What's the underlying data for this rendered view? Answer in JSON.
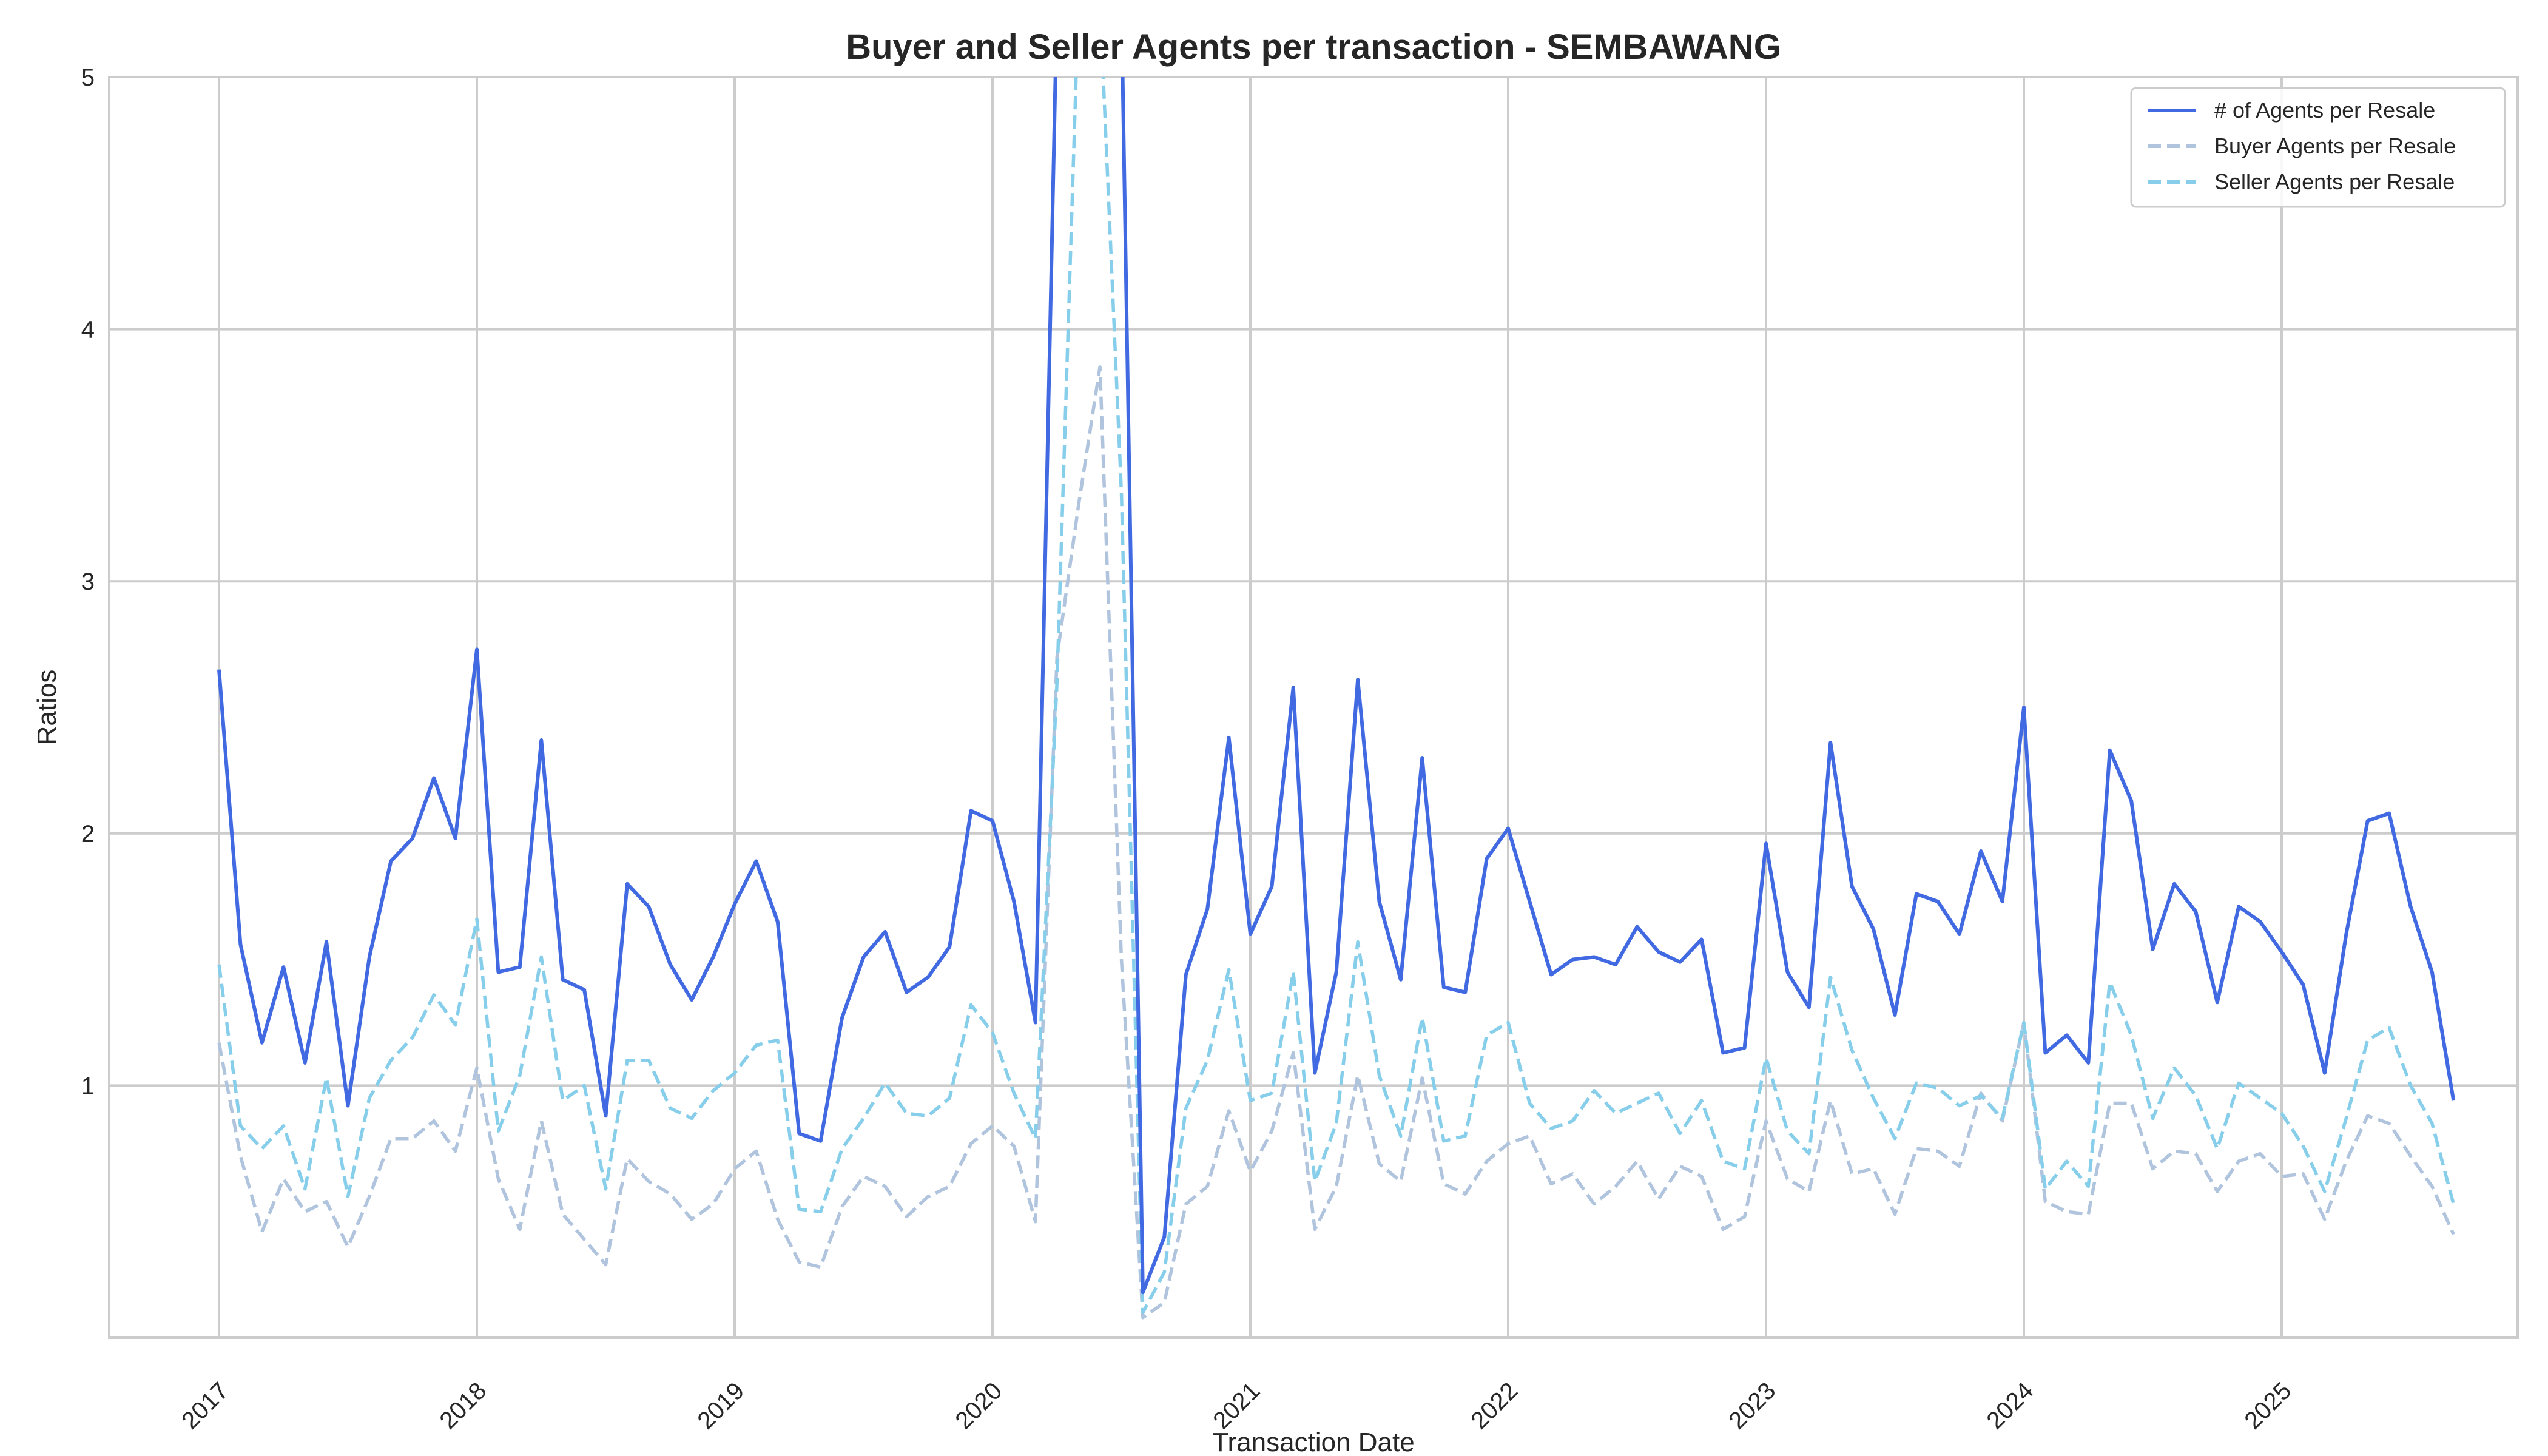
{
  "chart_data": {
    "type": "line",
    "title": "Buyer and Seller Agents per transaction - SEMBAWANG",
    "xlabel": "Transaction Date",
    "ylabel": "Ratios",
    "x_start": "2017-01",
    "x_ticks": [
      "2017",
      "2018",
      "2019",
      "2020",
      "2021",
      "2022",
      "2023",
      "2024",
      "2025"
    ],
    "y_ticks": [
      "1",
      "2",
      "3",
      "4",
      "5"
    ],
    "ylim": [
      0,
      5
    ],
    "grid": true,
    "legend_position": "top-right",
    "series": [
      {
        "name": "# of Agents per Resale",
        "color": "#4169e1",
        "style": "solid",
        "values": [
          2.65,
          1.56,
          1.17,
          1.47,
          1.09,
          1.57,
          0.92,
          1.51,
          1.89,
          1.98,
          2.22,
          1.98,
          2.73,
          1.45,
          1.47,
          2.37,
          1.42,
          1.38,
          0.88,
          1.8,
          1.71,
          1.48,
          1.34,
          1.51,
          1.72,
          1.89,
          1.65,
          0.81,
          0.78,
          1.27,
          1.51,
          1.61,
          1.37,
          1.43,
          1.55,
          2.09,
          2.05,
          1.73,
          1.25,
          5.3,
          5.2,
          5.2,
          5.3,
          0.18,
          0.4,
          1.44,
          1.7,
          2.38,
          1.6,
          1.79,
          2.58,
          1.05,
          1.45,
          2.61,
          1.73,
          1.42,
          2.3,
          1.39,
          1.37,
          1.9,
          2.02,
          1.73,
          1.44,
          1.5,
          1.51,
          1.48,
          1.63,
          1.53,
          1.49,
          1.58,
          1.13,
          1.15,
          1.96,
          1.45,
          1.31,
          2.36,
          1.79,
          1.62,
          1.28,
          1.76,
          1.73,
          1.6,
          1.93,
          1.73,
          2.5,
          1.13,
          1.2,
          1.09,
          2.33,
          2.13,
          1.54,
          1.8,
          1.69,
          1.33,
          1.71,
          1.65,
          1.53,
          1.4,
          1.05,
          1.6,
          2.05,
          2.08,
          1.71,
          1.45,
          0.94
        ]
      },
      {
        "name": "Buyer Agents per Resale",
        "color": "#b0c4de",
        "style": "dashed",
        "values": [
          1.17,
          0.72,
          0.42,
          0.63,
          0.5,
          0.54,
          0.36,
          0.56,
          0.79,
          0.79,
          0.86,
          0.74,
          1.07,
          0.63,
          0.43,
          0.86,
          0.49,
          0.39,
          0.29,
          0.71,
          0.62,
          0.57,
          0.47,
          0.53,
          0.67,
          0.74,
          0.47,
          0.3,
          0.28,
          0.52,
          0.64,
          0.6,
          0.48,
          0.56,
          0.6,
          0.77,
          0.84,
          0.76,
          0.46,
          2.7,
          3.3,
          3.85,
          1.5,
          0.08,
          0.14,
          0.53,
          0.6,
          0.9,
          0.66,
          0.82,
          1.13,
          0.43,
          0.6,
          1.04,
          0.69,
          0.62,
          1.03,
          0.61,
          0.57,
          0.7,
          0.77,
          0.8,
          0.61,
          0.65,
          0.53,
          0.6,
          0.7,
          0.55,
          0.68,
          0.64,
          0.43,
          0.48,
          0.86,
          0.63,
          0.58,
          0.94,
          0.65,
          0.67,
          0.49,
          0.75,
          0.74,
          0.68,
          0.97,
          0.86,
          1.25,
          0.54,
          0.5,
          0.49,
          0.93,
          0.93,
          0.67,
          0.74,
          0.73,
          0.58,
          0.7,
          0.73,
          0.64,
          0.65,
          0.47,
          0.7,
          0.88,
          0.85,
          0.72,
          0.6,
          0.41
        ]
      },
      {
        "name": "Seller Agents per Resale",
        "color": "#87ceeb",
        "style": "dashed",
        "values": [
          1.48,
          0.84,
          0.75,
          0.84,
          0.59,
          1.03,
          0.56,
          0.95,
          1.1,
          1.19,
          1.36,
          1.24,
          1.66,
          0.82,
          1.04,
          1.51,
          0.94,
          1.0,
          0.59,
          1.1,
          1.1,
          0.91,
          0.87,
          0.98,
          1.05,
          1.16,
          1.18,
          0.51,
          0.5,
          0.75,
          0.87,
          1.01,
          0.89,
          0.88,
          0.95,
          1.32,
          1.21,
          0.97,
          0.79,
          2.6,
          5.3,
          5.3,
          3.35,
          0.1,
          0.26,
          0.91,
          1.1,
          1.46,
          0.94,
          0.97,
          1.45,
          0.62,
          0.85,
          1.57,
          1.04,
          0.8,
          1.27,
          0.78,
          0.8,
          1.2,
          1.25,
          0.93,
          0.83,
          0.86,
          0.98,
          0.89,
          0.93,
          0.97,
          0.81,
          0.94,
          0.7,
          0.67,
          1.11,
          0.82,
          0.73,
          1.43,
          1.14,
          0.95,
          0.79,
          1.01,
          0.99,
          0.92,
          0.96,
          0.87,
          1.25,
          0.59,
          0.7,
          0.6,
          1.41,
          1.2,
          0.87,
          1.07,
          0.96,
          0.75,
          1.01,
          0.95,
          0.89,
          0.76,
          0.58,
          0.87,
          1.18,
          1.23,
          1.0,
          0.85,
          0.53
        ]
      }
    ]
  }
}
